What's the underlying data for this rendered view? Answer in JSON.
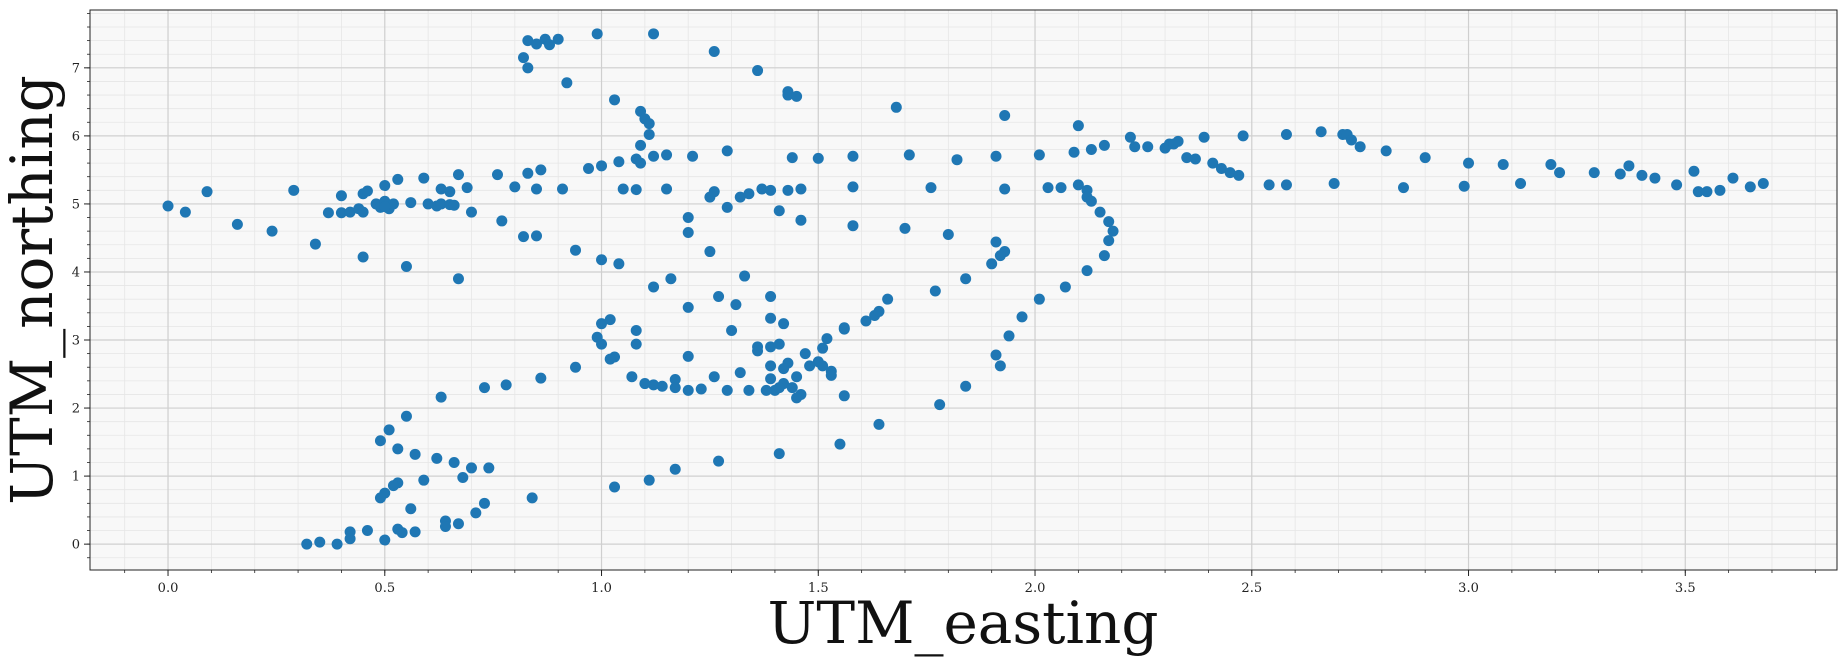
{
  "chart_data": {
    "type": "scatter",
    "xlabel": "UTM_easting",
    "ylabel": "UTM_northing",
    "xlim": [
      -0.18,
      3.85
    ],
    "ylim": [
      -0.38,
      7.85
    ],
    "x_ticks": [
      0.0,
      0.5,
      1.0,
      1.5,
      2.0,
      2.5,
      3.0,
      3.5
    ],
    "x_tick_labels": [
      "0.0",
      "0.5",
      "1.0",
      "1.5",
      "2.0",
      "2.5",
      "3.0",
      "3.5"
    ],
    "y_ticks": [
      0,
      1,
      2,
      3,
      4,
      5,
      6,
      7
    ],
    "y_tick_labels": [
      "0",
      "1",
      "2",
      "3",
      "4",
      "5",
      "6",
      "7"
    ],
    "grid": true,
    "minor_grid": true,
    "marker_color": "#1f77b4",
    "points": [
      [
        0.0,
        4.97
      ],
      [
        0.04,
        4.88
      ],
      [
        0.09,
        5.18
      ],
      [
        0.16,
        4.7
      ],
      [
        0.24,
        4.6
      ],
      [
        0.29,
        5.2
      ],
      [
        0.34,
        4.41
      ],
      [
        0.37,
        4.87
      ],
      [
        0.4,
        4.87
      ],
      [
        0.4,
        5.12
      ],
      [
        0.42,
        4.88
      ],
      [
        0.44,
        4.93
      ],
      [
        0.45,
        5.15
      ],
      [
        0.45,
        4.88
      ],
      [
        0.46,
        5.19
      ],
      [
        0.48,
        5.0
      ],
      [
        0.49,
        4.95
      ],
      [
        0.5,
        5.04
      ],
      [
        0.5,
        5.27
      ],
      [
        0.51,
        4.93
      ],
      [
        0.52,
        5.0
      ],
      [
        0.53,
        5.36
      ],
      [
        0.59,
        5.38
      ],
      [
        0.6,
        5.0
      ],
      [
        0.62,
        4.97
      ],
      [
        0.63,
        5.22
      ],
      [
        0.65,
        5.18
      ],
      [
        0.67,
        5.43
      ],
      [
        0.69,
        5.24
      ],
      [
        0.7,
        4.88
      ],
      [
        0.76,
        5.43
      ],
      [
        0.77,
        4.75
      ],
      [
        0.8,
        5.25
      ],
      [
        0.83,
        5.45
      ],
      [
        0.85,
        5.22
      ],
      [
        0.86,
        5.5
      ],
      [
        0.91,
        5.22
      ],
      [
        0.97,
        5.52
      ],
      [
        1.0,
        5.56
      ],
      [
        1.04,
        5.62
      ],
      [
        1.05,
        5.22
      ],
      [
        1.08,
        5.21
      ],
      [
        1.09,
        5.6
      ],
      [
        1.12,
        5.7
      ],
      [
        1.15,
        5.72
      ],
      [
        1.15,
        5.22
      ],
      [
        1.21,
        5.7
      ],
      [
        1.25,
        5.1
      ],
      [
        1.26,
        5.18
      ],
      [
        1.29,
        5.78
      ],
      [
        1.32,
        5.1
      ],
      [
        1.34,
        5.15
      ],
      [
        1.37,
        5.22
      ],
      [
        1.39,
        5.2
      ],
      [
        1.43,
        5.2
      ],
      [
        1.44,
        5.68
      ],
      [
        1.46,
        5.22
      ],
      [
        1.5,
        5.67
      ],
      [
        1.58,
        5.7
      ],
      [
        1.58,
        5.25
      ],
      [
        1.71,
        5.72
      ],
      [
        1.76,
        5.24
      ],
      [
        1.82,
        5.65
      ],
      [
        1.91,
        5.7
      ],
      [
        1.93,
        5.22
      ],
      [
        2.01,
        5.72
      ],
      [
        2.03,
        5.24
      ],
      [
        2.06,
        5.24
      ],
      [
        2.09,
        5.76
      ],
      [
        2.13,
        5.8
      ],
      [
        2.16,
        5.86
      ],
      [
        2.22,
        5.98
      ],
      [
        2.23,
        5.84
      ],
      [
        2.26,
        5.84
      ],
      [
        2.3,
        5.82
      ],
      [
        2.31,
        5.88
      ],
      [
        2.32,
        5.88
      ],
      [
        2.33,
        5.92
      ],
      [
        2.35,
        5.68
      ],
      [
        2.37,
        5.66
      ],
      [
        2.39,
        5.98
      ],
      [
        2.41,
        5.6
      ],
      [
        2.43,
        5.52
      ],
      [
        2.45,
        5.46
      ],
      [
        2.47,
        5.42
      ],
      [
        2.48,
        6.0
      ],
      [
        2.54,
        5.28
      ],
      [
        2.58,
        5.28
      ],
      [
        2.58,
        6.02
      ],
      [
        2.66,
        6.06
      ],
      [
        2.69,
        5.3
      ],
      [
        2.71,
        6.02
      ],
      [
        2.72,
        6.02
      ],
      [
        2.73,
        5.94
      ],
      [
        2.75,
        5.84
      ],
      [
        2.81,
        5.78
      ],
      [
        2.85,
        5.24
      ],
      [
        2.9,
        5.68
      ],
      [
        2.99,
        5.26
      ],
      [
        3.0,
        5.6
      ],
      [
        3.08,
        5.58
      ],
      [
        3.12,
        5.3
      ],
      [
        3.19,
        5.58
      ],
      [
        3.21,
        5.46
      ],
      [
        3.29,
        5.46
      ],
      [
        3.35,
        5.44
      ],
      [
        3.37,
        5.56
      ],
      [
        3.4,
        5.42
      ],
      [
        3.43,
        5.38
      ],
      [
        3.48,
        5.28
      ],
      [
        3.52,
        5.48
      ],
      [
        3.53,
        5.18
      ],
      [
        3.55,
        5.18
      ],
      [
        3.58,
        5.2
      ],
      [
        3.61,
        5.38
      ],
      [
        3.65,
        5.25
      ],
      [
        3.68,
        5.3
      ],
      [
        0.82,
        7.15
      ],
      [
        0.83,
        7.4
      ],
      [
        0.83,
        7.0
      ],
      [
        0.85,
        7.35
      ],
      [
        0.87,
        7.42
      ],
      [
        0.88,
        7.34
      ],
      [
        0.9,
        7.42
      ],
      [
        0.92,
        6.78
      ],
      [
        0.99,
        7.5
      ],
      [
        1.03,
        6.53
      ],
      [
        1.12,
        7.5
      ],
      [
        1.26,
        7.24
      ],
      [
        1.36,
        6.96
      ],
      [
        1.43,
        6.65
      ],
      [
        1.43,
        6.6
      ],
      [
        1.45,
        6.58
      ],
      [
        1.68,
        6.42
      ],
      [
        1.93,
        6.3
      ],
      [
        2.1,
        6.15
      ],
      [
        1.09,
        6.36
      ],
      [
        1.1,
        6.25
      ],
      [
        1.11,
        6.18
      ],
      [
        1.11,
        6.02
      ],
      [
        1.09,
        5.86
      ],
      [
        1.08,
        5.66
      ],
      [
        0.63,
        5.0
      ],
      [
        0.65,
        4.99
      ],
      [
        0.66,
        4.98
      ],
      [
        0.5,
        4.96
      ],
      [
        0.56,
        5.02
      ],
      [
        2.1,
        5.28
      ],
      [
        2.12,
        5.2
      ],
      [
        2.12,
        5.1
      ],
      [
        2.13,
        5.04
      ],
      [
        2.15,
        4.88
      ],
      [
        2.17,
        4.74
      ],
      [
        2.17,
        4.46
      ],
      [
        2.18,
        4.6
      ],
      [
        2.16,
        4.24
      ],
      [
        2.12,
        4.02
      ],
      [
        2.07,
        3.78
      ],
      [
        2.01,
        3.6
      ],
      [
        1.97,
        3.34
      ],
      [
        1.94,
        3.06
      ],
      [
        1.92,
        2.62
      ],
      [
        1.91,
        2.78
      ],
      [
        1.93,
        4.3
      ],
      [
        1.92,
        4.24
      ],
      [
        1.91,
        4.44
      ],
      [
        1.9,
        4.12
      ],
      [
        1.84,
        3.9
      ],
      [
        1.8,
        4.55
      ],
      [
        1.77,
        3.72
      ],
      [
        1.7,
        4.64
      ],
      [
        1.58,
        4.68
      ],
      [
        1.41,
        4.9
      ],
      [
        1.46,
        4.76
      ],
      [
        1.2,
        4.8
      ],
      [
        1.2,
        4.58
      ],
      [
        1.25,
        4.3
      ],
      [
        1.29,
        4.95
      ],
      [
        1.16,
        3.9
      ],
      [
        1.12,
        3.78
      ],
      [
        1.0,
        4.18
      ],
      [
        1.04,
        4.12
      ],
      [
        0.94,
        4.32
      ],
      [
        0.82,
        4.52
      ],
      [
        0.85,
        4.53
      ],
      [
        0.45,
        4.22
      ],
      [
        0.55,
        4.08
      ],
      [
        0.67,
        3.9
      ],
      [
        1.33,
        3.94
      ],
      [
        1.39,
        3.64
      ],
      [
        1.27,
        3.64
      ],
      [
        1.31,
        3.52
      ],
      [
        1.2,
        3.48
      ],
      [
        1.39,
        3.32
      ],
      [
        1.42,
        3.24
      ],
      [
        1.3,
        3.14
      ],
      [
        1.08,
        3.14
      ],
      [
        1.0,
        3.24
      ],
      [
        1.02,
        3.3
      ],
      [
        0.99,
        3.04
      ],
      [
        1.0,
        2.94
      ],
      [
        1.08,
        2.94
      ],
      [
        1.03,
        2.75
      ],
      [
        1.02,
        2.72
      ],
      [
        1.2,
        2.76
      ],
      [
        1.36,
        2.9
      ],
      [
        1.39,
        2.9
      ],
      [
        1.41,
        2.94
      ],
      [
        1.36,
        2.84
      ],
      [
        1.52,
        3.02
      ],
      [
        1.51,
        2.88
      ],
      [
        1.56,
        3.16
      ],
      [
        1.56,
        3.18
      ],
      [
        1.61,
        3.28
      ],
      [
        1.63,
        3.36
      ],
      [
        1.64,
        3.42
      ],
      [
        1.66,
        3.6
      ],
      [
        1.47,
        2.8
      ],
      [
        1.5,
        2.68
      ],
      [
        1.48,
        2.62
      ],
      [
        1.43,
        2.66
      ],
      [
        1.39,
        2.62
      ],
      [
        1.42,
        2.58
      ],
      [
        1.51,
        2.62
      ],
      [
        1.53,
        2.54
      ],
      [
        1.53,
        2.48
      ],
      [
        1.45,
        2.46
      ],
      [
        1.42,
        2.36
      ],
      [
        1.46,
        2.2
      ],
      [
        1.45,
        2.15
      ],
      [
        1.44,
        2.3
      ],
      [
        1.4,
        2.26
      ],
      [
        1.38,
        2.26
      ],
      [
        1.41,
        2.3
      ],
      [
        1.39,
        2.43
      ],
      [
        1.34,
        2.26
      ],
      [
        1.29,
        2.26
      ],
      [
        1.32,
        2.52
      ],
      [
        1.26,
        2.46
      ],
      [
        1.23,
        2.28
      ],
      [
        1.2,
        2.26
      ],
      [
        1.17,
        2.42
      ],
      [
        1.17,
        2.3
      ],
      [
        1.14,
        2.32
      ],
      [
        1.12,
        2.34
      ],
      [
        1.1,
        2.36
      ],
      [
        1.07,
        2.46
      ],
      [
        0.94,
        2.6
      ],
      [
        0.86,
        2.44
      ],
      [
        0.78,
        2.34
      ],
      [
        0.73,
        2.3
      ],
      [
        0.63,
        2.16
      ],
      [
        1.56,
        2.18
      ],
      [
        1.64,
        1.76
      ],
      [
        1.78,
        2.05
      ],
      [
        1.84,
        2.32
      ],
      [
        1.55,
        1.47
      ],
      [
        1.41,
        1.33
      ],
      [
        1.27,
        1.22
      ],
      [
        1.17,
        1.1
      ],
      [
        1.11,
        0.94
      ],
      [
        1.03,
        0.84
      ],
      [
        0.55,
        1.88
      ],
      [
        0.51,
        1.68
      ],
      [
        0.49,
        1.52
      ],
      [
        0.53,
        1.4
      ],
      [
        0.57,
        1.32
      ],
      [
        0.62,
        1.26
      ],
      [
        0.66,
        1.2
      ],
      [
        0.7,
        1.12
      ],
      [
        0.74,
        1.12
      ],
      [
        0.68,
        0.98
      ],
      [
        0.59,
        0.94
      ],
      [
        0.53,
        0.9
      ],
      [
        0.52,
        0.86
      ],
      [
        0.5,
        0.75
      ],
      [
        0.49,
        0.68
      ],
      [
        0.56,
        0.52
      ],
      [
        0.73,
        0.6
      ],
      [
        0.71,
        0.46
      ],
      [
        0.84,
        0.68
      ],
      [
        0.64,
        0.34
      ],
      [
        0.64,
        0.26
      ],
      [
        0.67,
        0.3
      ],
      [
        0.53,
        0.22
      ],
      [
        0.54,
        0.17
      ],
      [
        0.57,
        0.18
      ],
      [
        0.46,
        0.2
      ],
      [
        0.42,
        0.18
      ],
      [
        0.42,
        0.08
      ],
      [
        0.5,
        0.06
      ],
      [
        0.35,
        0.03
      ],
      [
        0.32,
        0.0
      ],
      [
        0.39,
        0.0
      ]
    ]
  }
}
